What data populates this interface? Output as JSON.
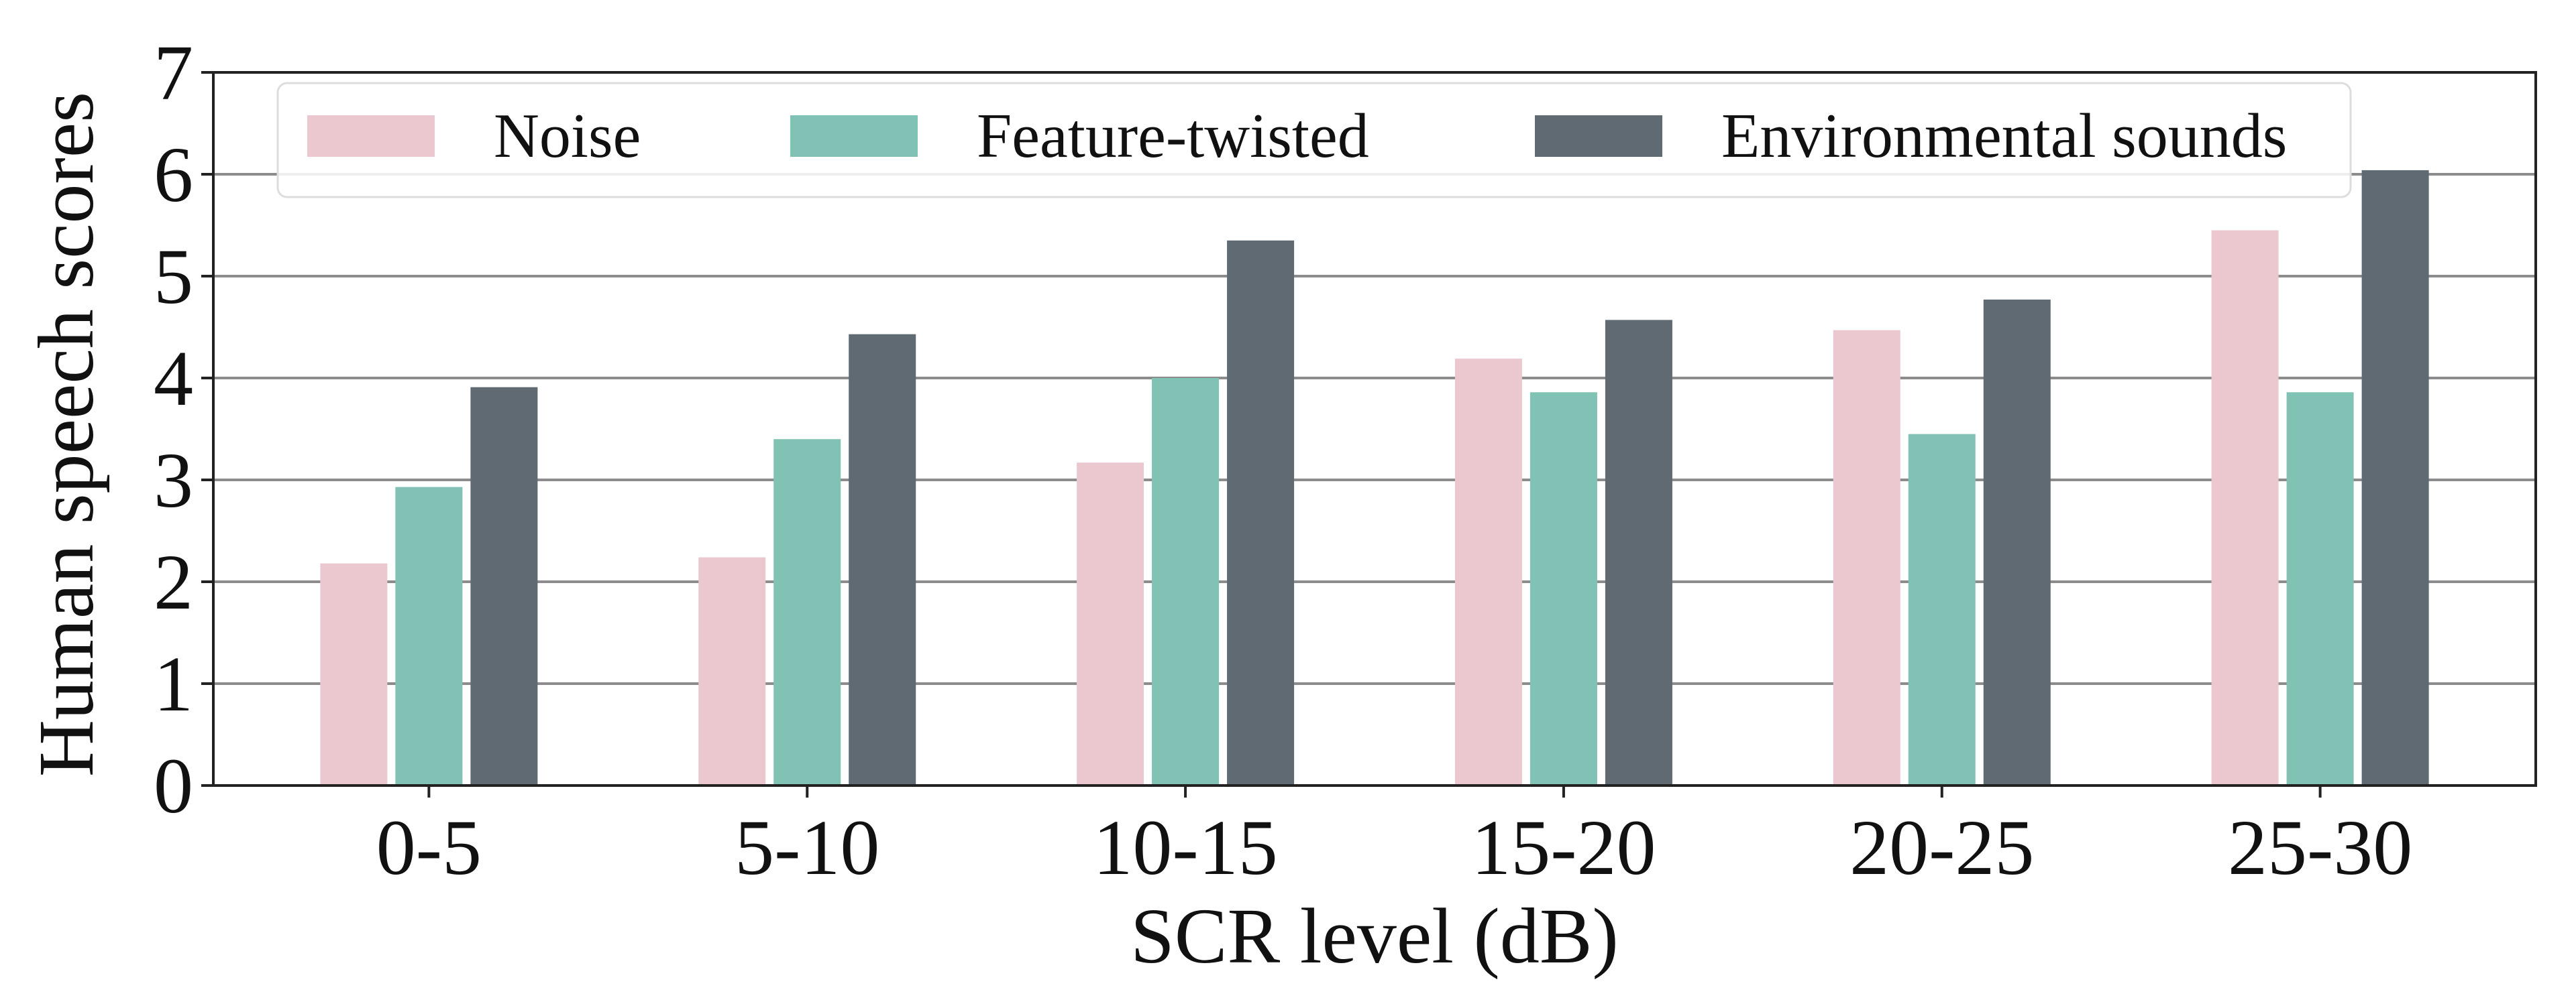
{
  "chart_data": {
    "type": "bar",
    "title": "",
    "xlabel": "SCR level (dB)",
    "ylabel": "Human speech scores",
    "categories": [
      "0-5",
      "5-10",
      "10-15",
      "15-20",
      "20-25",
      "25-30"
    ],
    "series": [
      {
        "name": "Noise",
        "color": "#ebc8cf",
        "values": [
          2.18,
          2.24,
          3.17,
          4.19,
          4.47,
          5.45
        ]
      },
      {
        "name": "Feature-twisted",
        "color": "#80c2b3",
        "values": [
          2.93,
          3.4,
          4.0,
          3.86,
          3.45,
          3.86
        ]
      },
      {
        "name": "Environmental sounds",
        "color": "#5f6a73",
        "values": [
          3.91,
          4.43,
          5.35,
          4.57,
          4.77,
          6.04
        ]
      }
    ],
    "ylim": [
      0,
      7
    ],
    "yticks": [
      0,
      1,
      2,
      3,
      4,
      5,
      6,
      7
    ],
    "grid": "horizontal",
    "legend_position": "top",
    "legend_columns": 3
  }
}
